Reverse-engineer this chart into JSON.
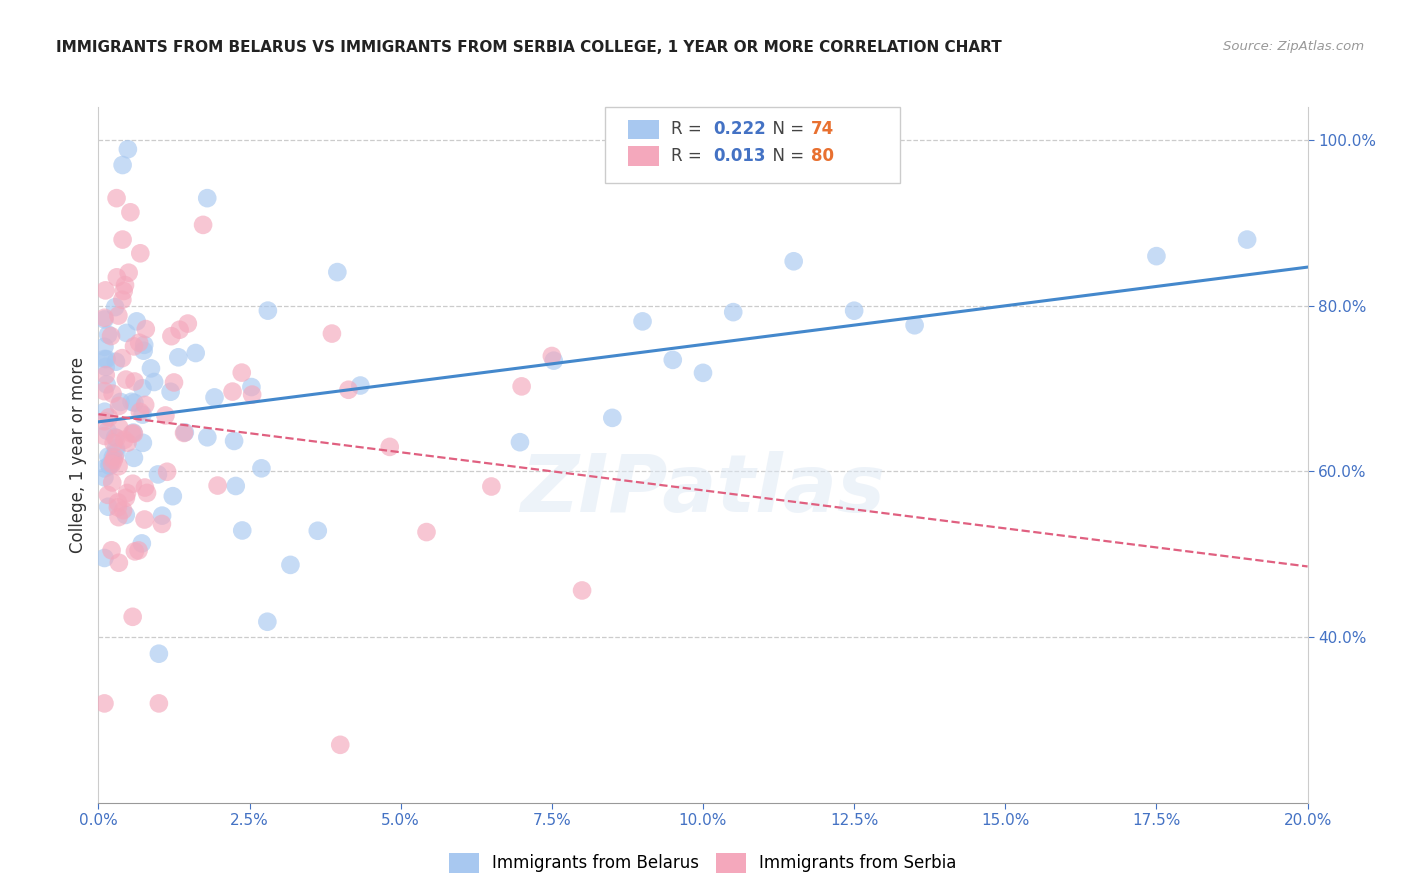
{
  "title": "IMMIGRANTS FROM BELARUS VS IMMIGRANTS FROM SERBIA COLLEGE, 1 YEAR OR MORE CORRELATION CHART",
  "source": "Source: ZipAtlas.com",
  "ylabel": "College, 1 year or more",
  "legend_blue_r": "0.222",
  "legend_blue_n": "74",
  "legend_pink_r": "0.013",
  "legend_pink_n": "80",
  "blue_color": "#A8C8F0",
  "pink_color": "#F4A8BC",
  "blue_line_color": "#4488CC",
  "pink_line_color": "#E06080",
  "watermark": "ZIPatlas",
  "background_color": "#ffffff",
  "blue_scatter_seed": 42,
  "pink_scatter_seed": 123
}
